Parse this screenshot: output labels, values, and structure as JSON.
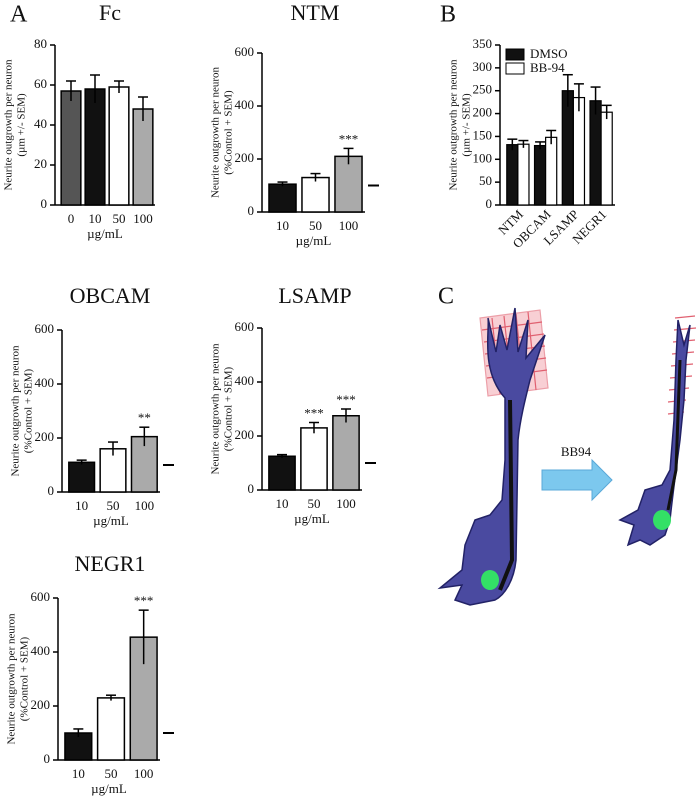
{
  "panel_labels": [
    "A",
    "B",
    "C"
  ],
  "chart_data": [
    {
      "type": "bar",
      "title": "Fc",
      "x_label": "µg/mL",
      "y_label": [
        "Neurite outgrowth per neuron",
        "(µm +/- SEM)"
      ],
      "categories": [
        "0",
        "10",
        "50",
        "100"
      ],
      "values": [
        57,
        58,
        59,
        48
      ],
      "errors": [
        5,
        7,
        3,
        6
      ],
      "colors": [
        "#555555",
        "#111111",
        "#ffffff",
        "#aaaaaa"
      ],
      "ylim": [
        0,
        80
      ],
      "yticks": [
        0,
        20,
        40,
        60,
        80
      ]
    },
    {
      "type": "bar",
      "title": "NTM",
      "x_label": "µg/mL",
      "y_label": [
        "Neurite outgrowth per neuron",
        "(%Control + SEM)"
      ],
      "categories": [
        "10",
        "50",
        "100"
      ],
      "values": [
        105,
        130,
        210
      ],
      "errors": [
        8,
        15,
        30
      ],
      "colors": [
        "#111111",
        "#ffffff",
        "#aaaaaa"
      ],
      "ylim": [
        0,
        600
      ],
      "yticks": [
        0,
        200,
        400,
        600
      ],
      "significance": [
        null,
        null,
        "***"
      ],
      "reference_line": 100
    },
    {
      "type": "grouped_bar",
      "y_label": [
        "Neurite outgrowth per neuron",
        "(µm +/- SEM)"
      ],
      "categories": [
        "NTM",
        "OBCAM",
        "LSAMP",
        "NEGR1"
      ],
      "legend": "upper left",
      "series": [
        {
          "name": "DMSO",
          "color": "#111111",
          "values": [
            132,
            130,
            250,
            228
          ],
          "errors": [
            12,
            8,
            35,
            30
          ]
        },
        {
          "name": "BB-94",
          "color": "#ffffff",
          "values": [
            133,
            148,
            235,
            203
          ],
          "errors": [
            8,
            15,
            30,
            15
          ]
        }
      ],
      "ylim": [
        0,
        350
      ],
      "yticks": [
        0,
        50,
        100,
        150,
        200,
        250,
        300,
        350
      ]
    },
    {
      "type": "bar",
      "title": "OBCAM",
      "x_label": "µg/mL",
      "y_label": [
        "Neurite outgrowth per neuron",
        "(%Control + SEM)"
      ],
      "categories": [
        "10",
        "50",
        "100"
      ],
      "values": [
        110,
        160,
        205
      ],
      "errors": [
        8,
        25,
        35
      ],
      "colors": [
        "#111111",
        "#ffffff",
        "#aaaaaa"
      ],
      "ylim": [
        0,
        600
      ],
      "yticks": [
        0,
        200,
        400,
        600
      ],
      "significance": [
        null,
        null,
        "**"
      ],
      "reference_line": 100
    },
    {
      "type": "bar",
      "title": "LSAMP",
      "x_label": "µg/mL",
      "y_label": [
        "Neurite outgrowth per neuron",
        "(%Control + SEM)"
      ],
      "categories": [
        "10",
        "50",
        "100"
      ],
      "values": [
        125,
        230,
        275
      ],
      "errors": [
        6,
        20,
        25
      ],
      "colors": [
        "#111111",
        "#ffffff",
        "#aaaaaa"
      ],
      "ylim": [
        0,
        600
      ],
      "yticks": [
        0,
        200,
        400,
        600
      ],
      "significance": [
        null,
        "***",
        "***"
      ],
      "reference_line": 100
    },
    {
      "type": "bar",
      "title": "NEGR1",
      "x_label": "µg/mL",
      "y_label": [
        "Neurite outgrowth per neuron",
        "(%Control + SEM)"
      ],
      "categories": [
        "10",
        "50",
        "100"
      ],
      "values": [
        100,
        230,
        455
      ],
      "errors": [
        15,
        10,
        100
      ],
      "colors": [
        "#111111",
        "#ffffff",
        "#aaaaaa"
      ],
      "ylim": [
        0,
        600
      ],
      "yticks": [
        0,
        200,
        400,
        600
      ],
      "significance": [
        null,
        null,
        "***"
      ],
      "reference_line": 100
    }
  ],
  "diagram": {
    "arrow_label": "BB94"
  }
}
